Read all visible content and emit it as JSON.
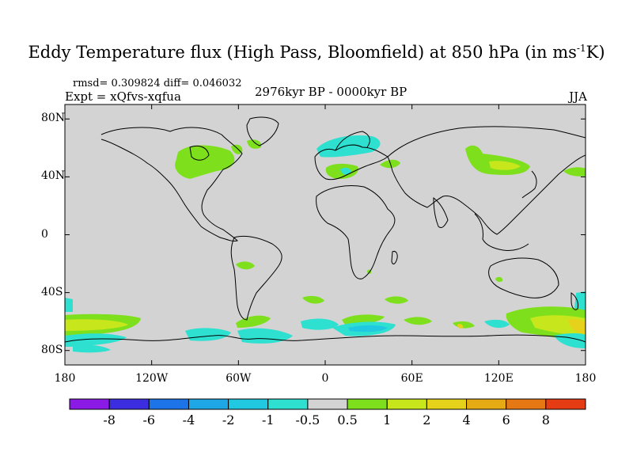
{
  "title": {
    "main": "Eddy Temperature flux (High Pass, Bloomfield) at 850 hPa (in ms",
    "sup": "-1",
    "end": "K)"
  },
  "stats_line": "rmsd= 0.309824  diff= 0.046032",
  "experiment_label": "Expt = xQfvs-xqfua",
  "period_label": "2976kyr BP - 0000kyr BP",
  "season_label": "JJA",
  "map": {
    "background_color": "#d3d3d3",
    "lat_ticks": [
      "80N",
      "40N",
      "0",
      "40S",
      "80S"
    ],
    "lat_values": [
      80,
      40,
      0,
      -40,
      -80
    ],
    "lon_ticks": [
      "180",
      "120W",
      "60W",
      "0",
      "60E",
      "120E",
      "180"
    ],
    "lon_values": [
      -180,
      -120,
      -60,
      0,
      60,
      120,
      180
    ]
  },
  "colorbar": {
    "colors": [
      "#8c1ae6",
      "#3c2ee0",
      "#1c74e8",
      "#1ea6e6",
      "#20c8e0",
      "#2ee0d0",
      "#d3d3d3",
      "#7ee01c",
      "#c8e61c",
      "#e6d21a",
      "#e6aa14",
      "#e67814",
      "#e63c14"
    ],
    "labels": [
      "-8",
      "-6",
      "-4",
      "-2",
      "-1",
      "-0.5",
      "0.5",
      "1",
      "2",
      "4",
      "6",
      "8"
    ]
  }
}
